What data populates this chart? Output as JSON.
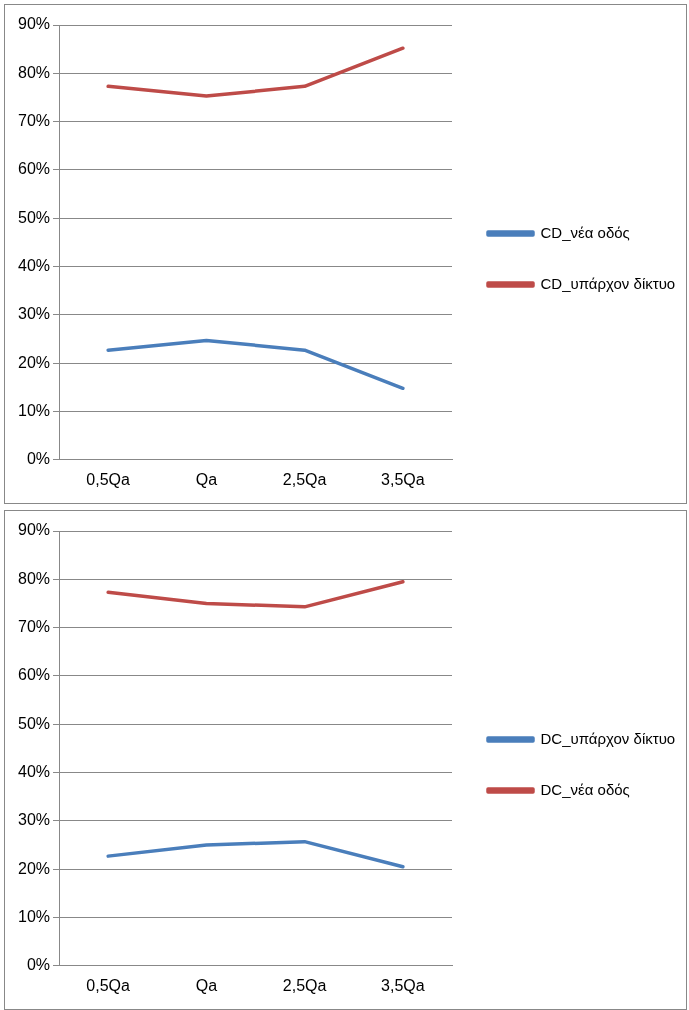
{
  "chart_data": [
    {
      "type": "line",
      "categories": [
        "0,5Qa",
        "Qa",
        "2,5Qa",
        "3,5Qa"
      ],
      "series": [
        {
          "name": "CD_νέα οδός",
          "color": "#4a7ebb",
          "values": [
            22.7,
            24.7,
            22.7,
            14.8
          ]
        },
        {
          "name": "CD_υπάρχον δίκτυο",
          "color": "#be4b48",
          "values": [
            77.3,
            75.3,
            77.3,
            85.2
          ]
        }
      ],
      "ylim": [
        0,
        90
      ],
      "yticks": [
        {
          "value": 0,
          "label": "0%"
        },
        {
          "value": 10,
          "label": "10%"
        },
        {
          "value": 20,
          "label": "20%"
        },
        {
          "value": 30,
          "label": "30%"
        },
        {
          "value": 40,
          "label": "40%"
        },
        {
          "value": 50,
          "label": "50%"
        },
        {
          "value": 60,
          "label": "60%"
        },
        {
          "value": 70,
          "label": "70%"
        },
        {
          "value": 80,
          "label": "80%"
        },
        {
          "value": 90,
          "label": "90%"
        }
      ],
      "grid": "y",
      "legend": "right",
      "marker": "none"
    },
    {
      "type": "line",
      "categories": [
        "0,5Qa",
        "Qa",
        "2,5Qa",
        "3,5Qa"
      ],
      "series": [
        {
          "name": "DC_υπάρχον δίκτυο",
          "color": "#4a7ebb",
          "values": [
            22.7,
            25.0,
            25.7,
            20.5
          ]
        },
        {
          "name": "DC_νέα οδός",
          "color": "#be4b48",
          "values": [
            77.3,
            75.0,
            74.3,
            79.5
          ]
        }
      ],
      "ylim": [
        0,
        90
      ],
      "yticks": [
        {
          "value": 0,
          "label": "0%"
        },
        {
          "value": 10,
          "label": "10%"
        },
        {
          "value": 20,
          "label": "20%"
        },
        {
          "value": 30,
          "label": "30%"
        },
        {
          "value": 40,
          "label": "40%"
        },
        {
          "value": 50,
          "label": "50%"
        },
        {
          "value": 60,
          "label": "60%"
        },
        {
          "value": 70,
          "label": "70%"
        },
        {
          "value": 80,
          "label": "80%"
        },
        {
          "value": 90,
          "label": "90%"
        }
      ],
      "grid": "y",
      "legend": "right",
      "marker": "none"
    }
  ]
}
